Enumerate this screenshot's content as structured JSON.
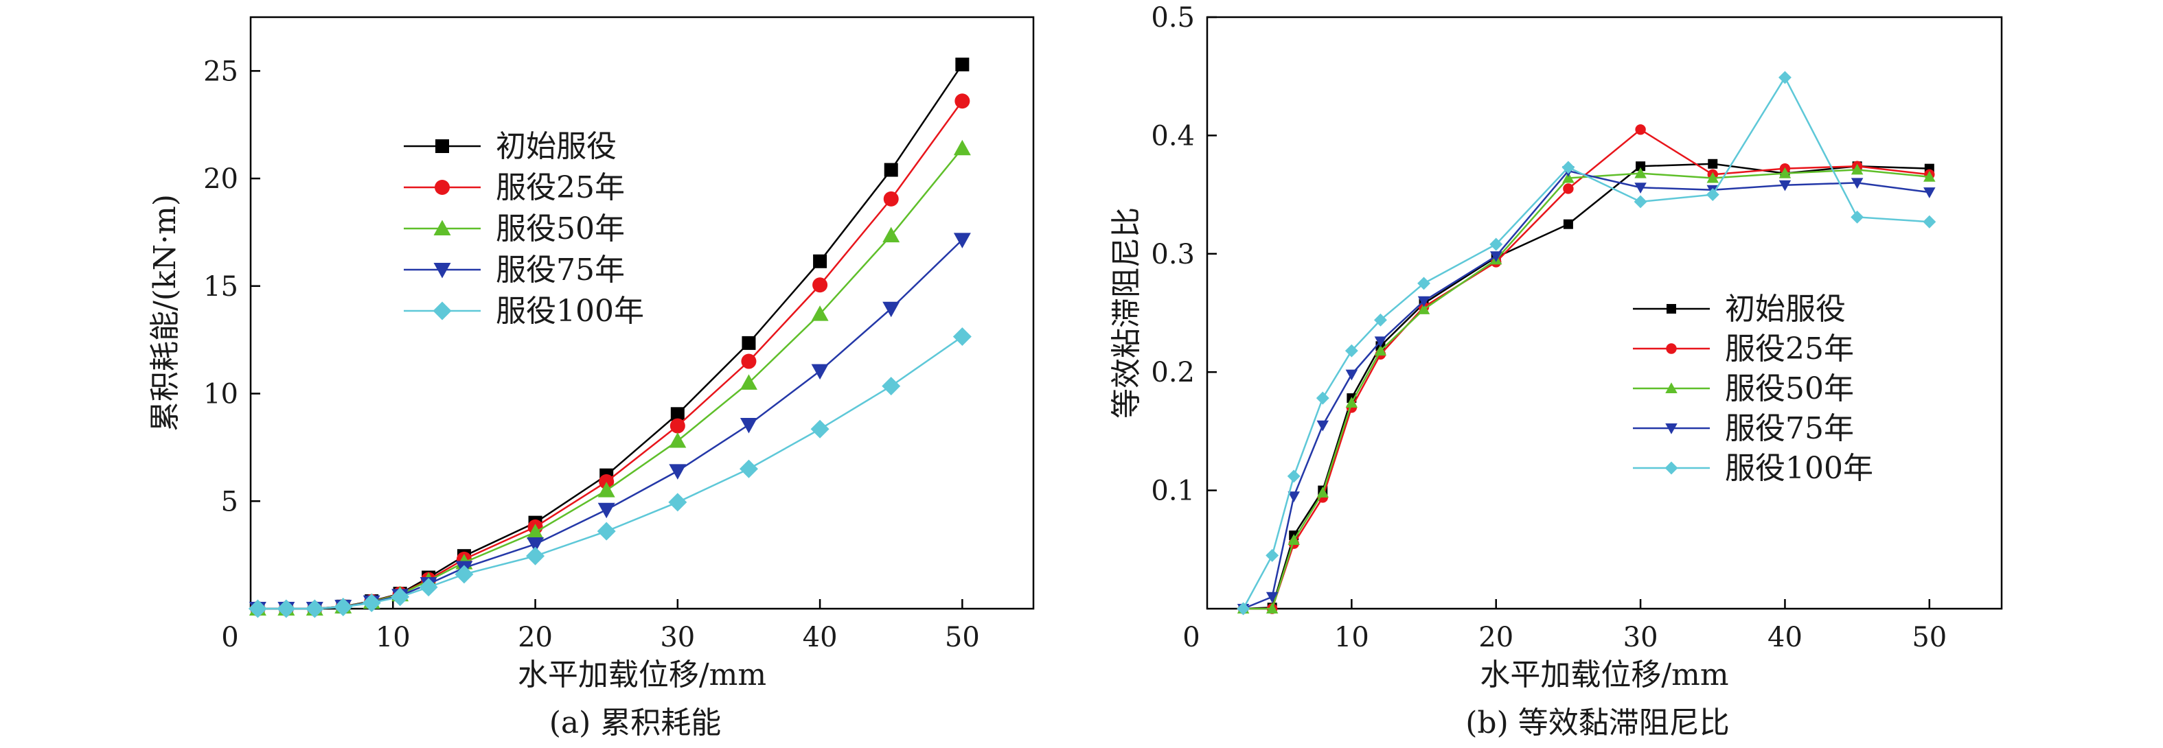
{
  "chart_data": [
    {
      "type": "line",
      "caption": "(a) 累积耗能",
      "xlabel": "水平加载位移/mm",
      "ylabel": "累积耗能/(kN·m)",
      "xlim": [
        0,
        55
      ],
      "ylim": [
        0,
        27.5
      ],
      "xticks": [
        10,
        20,
        30,
        40,
        50
      ],
      "xtick_labels": [
        "10",
        "20",
        "30",
        "40",
        "50"
      ],
      "yticks": [
        5,
        10,
        15,
        20,
        25
      ],
      "ytick_labels": [
        "5",
        "10",
        "15",
        "20",
        "25"
      ],
      "origin_label": "0",
      "legend_position": "upper-left",
      "x": [
        0.5,
        2.5,
        4.5,
        6.5,
        8.5,
        10.5,
        12.5,
        15,
        20,
        25,
        30,
        35,
        40,
        45,
        50
      ],
      "series": [
        {
          "name": "初始服役",
          "marker": "square",
          "color": "#000000",
          "values": [
            0,
            0,
            0,
            0.1,
            0.35,
            0.7,
            1.45,
            2.45,
            4.0,
            6.2,
            9.05,
            12.35,
            16.15,
            20.4,
            25.3
          ]
        },
        {
          "name": "服役25年",
          "marker": "circle",
          "color": "#e8151b",
          "values": [
            0,
            0,
            0,
            0.1,
            0.33,
            0.68,
            1.35,
            2.3,
            3.8,
            5.9,
            8.5,
            11.5,
            15.05,
            19.05,
            23.6
          ]
        },
        {
          "name": "服役50年",
          "marker": "triangle-up",
          "color": "#5fbf2a",
          "values": [
            0,
            0,
            0,
            0.1,
            0.32,
            0.66,
            1.3,
            2.15,
            3.55,
            5.5,
            7.8,
            10.5,
            13.7,
            17.35,
            21.4
          ]
        },
        {
          "name": "服役75年",
          "marker": "triangle-down",
          "color": "#2438a8",
          "values": [
            0,
            0,
            0,
            0.09,
            0.3,
            0.6,
            1.15,
            1.9,
            3.0,
            4.6,
            6.4,
            8.55,
            11.05,
            13.95,
            17.15
          ]
        },
        {
          "name": "服役100年",
          "marker": "diamond",
          "color": "#5ec8d8",
          "values": [
            0,
            0,
            0,
            0.08,
            0.27,
            0.55,
            1.0,
            1.6,
            2.45,
            3.6,
            4.95,
            6.5,
            8.35,
            10.35,
            12.65
          ]
        }
      ]
    },
    {
      "type": "line",
      "caption": "(b) 等效黏滞阻尼比",
      "xlabel": "水平加载位移/mm",
      "ylabel": "等效粘滞阻尼比",
      "xlim": [
        0,
        55
      ],
      "ylim": [
        0,
        0.5
      ],
      "xticks": [
        10,
        20,
        30,
        40,
        50
      ],
      "xtick_labels": [
        "10",
        "20",
        "30",
        "40",
        "50"
      ],
      "yticks": [
        0.1,
        0.2,
        0.3,
        0.4,
        0.5
      ],
      "ytick_labels": [
        "0.1",
        "0.2",
        "0.3",
        "0.4",
        "0.5"
      ],
      "origin_label": "0",
      "legend_position": "center-right",
      "x": [
        2.5,
        4.5,
        6,
        8,
        10,
        12,
        15,
        20,
        25,
        30,
        35,
        40,
        45,
        50
      ],
      "series": [
        {
          "name": "初始服役",
          "marker": "square",
          "color": "#000000",
          "values": [
            0.0,
            0.001,
            0.062,
            0.1,
            0.178,
            0.222,
            0.258,
            0.297,
            0.325,
            0.374,
            0.376,
            0.368,
            0.374,
            0.372
          ]
        },
        {
          "name": "服役25年",
          "marker": "circle",
          "color": "#e8151b",
          "values": [
            0.0,
            0.0,
            0.055,
            0.094,
            0.17,
            0.215,
            0.255,
            0.293,
            0.355,
            0.405,
            0.367,
            0.372,
            0.374,
            0.367
          ]
        },
        {
          "name": "服役50年",
          "marker": "triangle-up",
          "color": "#5fbf2a",
          "values": [
            0.0,
            0.0,
            0.058,
            0.098,
            0.174,
            0.218,
            0.253,
            0.295,
            0.364,
            0.368,
            0.364,
            0.368,
            0.371,
            0.365
          ]
        },
        {
          "name": "服役75年",
          "marker": "triangle-down",
          "color": "#2438a8",
          "values": [
            0.0,
            0.01,
            0.095,
            0.155,
            0.198,
            0.226,
            0.26,
            0.298,
            0.37,
            0.356,
            0.354,
            0.358,
            0.36,
            0.352
          ]
        },
        {
          "name": "服役100年",
          "marker": "diamond",
          "color": "#5ec8d8",
          "values": [
            0.0,
            0.045,
            0.112,
            0.178,
            0.218,
            0.244,
            0.275,
            0.308,
            0.373,
            0.344,
            0.35,
            0.449,
            0.331,
            0.327
          ]
        }
      ]
    }
  ]
}
